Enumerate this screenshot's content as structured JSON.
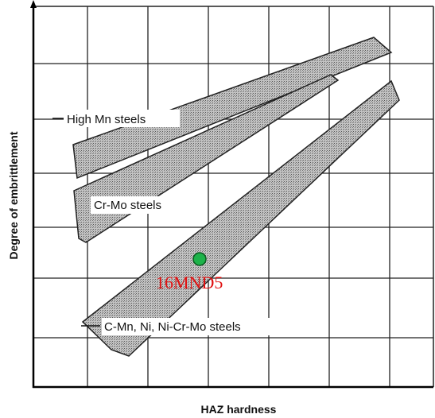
{
  "y_axis_label": "Degree of embrittlement",
  "x_axis_label": "HAZ hardness",
  "bands": [
    "High Mn steels",
    "Cr-Mo steels",
    "C-Mn, Ni, Ni-Cr-Mo steels"
  ],
  "point_label": "16MND5"
}
